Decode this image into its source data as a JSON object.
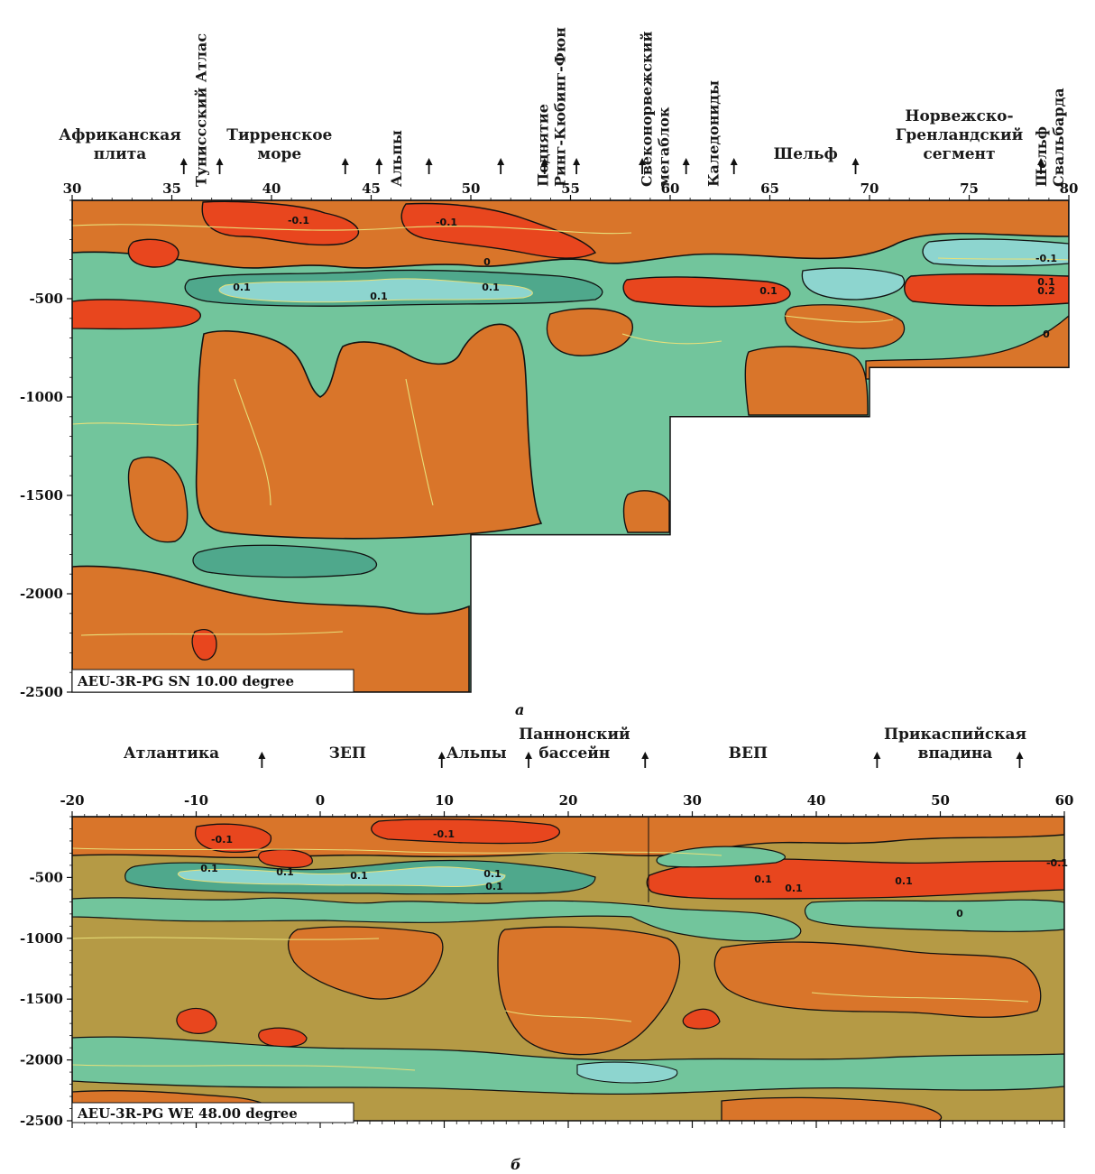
{
  "colors": {
    "strong_positive": "#e8461e",
    "positive": "#d9752a",
    "weak_positive": "#b59a45",
    "weak_negative": "#72c59c",
    "negative": "#4fa88c",
    "strong_negative": "#8dd5cf",
    "contour_zero": "#111111",
    "contour_minor": "#e8e07a"
  },
  "chart_data": [
    {
      "type": "heatmap",
      "panel": "а",
      "title": "AEU-3R-PG SN 10.00 degree",
      "x_ticks": [
        "30",
        "35",
        "40",
        "45",
        "50",
        "55",
        "60",
        "65",
        "70",
        "75",
        "80"
      ],
      "xlim": [
        30,
        80
      ],
      "y_ticks": [
        "-500",
        "-1000",
        "-1500",
        "-2000",
        "-2500"
      ],
      "ylim": [
        0,
        -2500
      ],
      "arrow_positions": [
        35.6,
        37.4,
        43.7,
        45.4,
        47.9,
        51.5,
        53.7,
        55.3,
        58.6,
        60.8,
        63.2,
        69.3,
        78.6
      ],
      "coverage_steps": [
        {
          "x_end": 50,
          "depth": 2500
        },
        {
          "x_end": 60,
          "depth": 1700
        },
        {
          "x_end": 70,
          "depth": 1100
        },
        {
          "x_end": 80,
          "depth": 850
        }
      ],
      "regions": [
        {
          "label": "Африканская\nплита",
          "x": 32.4
        },
        {
          "label": "Туниссский Атлас",
          "x": 36.5,
          "vertical": true
        },
        {
          "label": "Тирренское\nморе",
          "x": 40.4
        },
        {
          "label": "Альпы",
          "x": 46.3,
          "vertical": true
        },
        {
          "label": "Поднятие\nРинг-Кюбинг-Фюн",
          "x": 54.5,
          "vertical": true
        },
        {
          "label": "Свеконорвежский\nмегаблок",
          "x": 59.7,
          "vertical": true
        },
        {
          "label": "Каледониды",
          "x": 62.2,
          "vertical": true
        },
        {
          "label": "Шельф",
          "x": 66.8
        },
        {
          "label": "Норвежско-\nГренландский\nсегмент",
          "x": 74.5
        },
        {
          "label": "Шельф\nСвальбарда",
          "x": 79.5,
          "vertical": true
        }
      ],
      "contour_labels": [
        "-0.1",
        "-0.1",
        "0.1",
        "0.1",
        "0.1",
        "0.1",
        "-0.1",
        "0.1",
        "0.2",
        "0",
        "0"
      ]
    },
    {
      "type": "heatmap",
      "panel": "б",
      "title": "AEU-3R-PG WE 48.00 degree",
      "x_ticks": [
        "-20",
        "-10",
        "0",
        "10",
        "20",
        "30",
        "40",
        "50",
        "60"
      ],
      "xlim": [
        -20,
        60
      ],
      "y_ticks": [
        "-500",
        "-1000",
        "-1500",
        "-2000",
        "-2500"
      ],
      "ylim": [
        0,
        -2500
      ],
      "arrow_positions": [
        -4.7,
        9.8,
        16.8,
        26.2,
        44.9,
        56.4
      ],
      "regions": [
        {
          "label": "Атлантика",
          "x": -12
        },
        {
          "label": "ЗЕП",
          "x": 2.2
        },
        {
          "label": "Альпы",
          "x": 12.6
        },
        {
          "label": "Паннонский\nбассейн",
          "x": 20.5
        },
        {
          "label": "ВЕП",
          "x": 34.5
        },
        {
          "label": "Прикаспийская\nвпадина",
          "x": 51.2
        }
      ],
      "contour_labels": [
        "-0.1",
        "-0.1",
        "0.1",
        "0.1",
        "0.1",
        "0.1",
        "0.1",
        "0.1",
        "0.1",
        "-0.1",
        "0.1",
        "0"
      ]
    }
  ]
}
